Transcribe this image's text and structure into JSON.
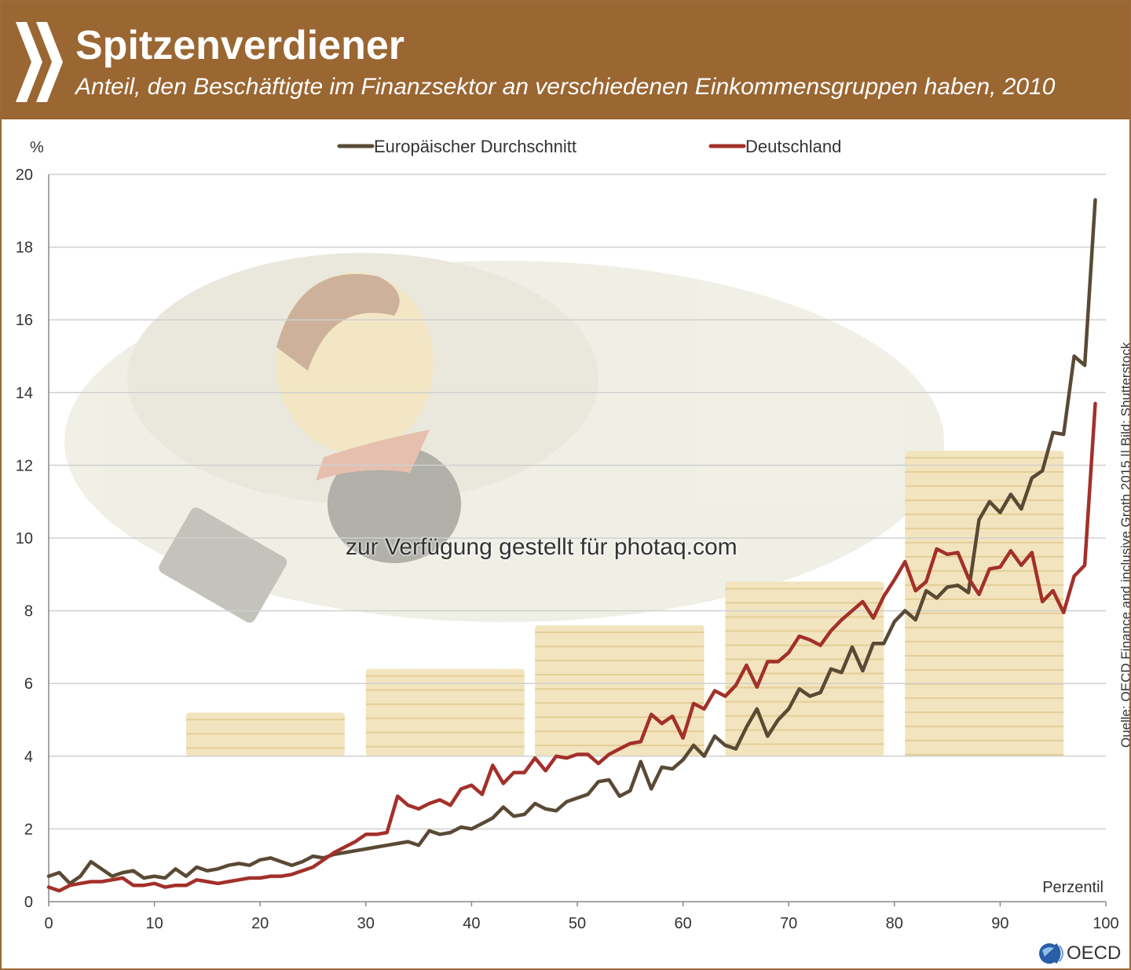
{
  "header": {
    "title": "Spitzenverdiener",
    "subtitle": "Anteil, den Beschäftigte im Finanzsektor an verschiedenen Einkommensgruppen haben, 2010"
  },
  "source_note": "Quelle: OECD Finance and inclusive Groth 2015 || Bild: Shutterstock",
  "watermark": "zur Verfügung gestellt für photaq.com",
  "logo_text": "OECD",
  "colors": {
    "header_bg": "#9a6632",
    "europe": "#5a4a35",
    "germany": "#a3302a",
    "grid": "#d0d0d0"
  },
  "chart_data": {
    "type": "line",
    "title": "Spitzenverdiener",
    "ylabel": "%",
    "xlabel": "Perzentil",
    "xlim": [
      0,
      100
    ],
    "ylim": [
      0,
      20
    ],
    "xticks": [
      0,
      10,
      20,
      30,
      40,
      50,
      60,
      70,
      80,
      90,
      100
    ],
    "yticks": [
      0,
      2,
      4,
      6,
      8,
      10,
      12,
      14,
      16,
      18,
      20
    ],
    "grid": true,
    "legend_position": "top",
    "series": [
      {
        "name": "Europäischer Durchschnitt",
        "color": "#5a4a35",
        "x": [
          0,
          1,
          2,
          3,
          4,
          5,
          6,
          7,
          8,
          9,
          10,
          11,
          12,
          13,
          14,
          15,
          16,
          17,
          18,
          19,
          20,
          21,
          22,
          23,
          24,
          25,
          26,
          27,
          28,
          29,
          30,
          31,
          32,
          33,
          34,
          35,
          36,
          37,
          38,
          39,
          40,
          41,
          42,
          43,
          44,
          45,
          46,
          47,
          48,
          49,
          50,
          51,
          52,
          53,
          54,
          55,
          56,
          57,
          58,
          59,
          60,
          61,
          62,
          63,
          64,
          65,
          66,
          67,
          68,
          69,
          70,
          71,
          72,
          73,
          74,
          75,
          76,
          77,
          78,
          79,
          80,
          81,
          82,
          83,
          84,
          85,
          86,
          87,
          88,
          89,
          90,
          91,
          92,
          93,
          94,
          95,
          96,
          97,
          98,
          99
        ],
        "values": [
          0.7,
          0.8,
          0.5,
          0.7,
          1.1,
          0.9,
          0.7,
          0.8,
          0.85,
          0.65,
          0.7,
          0.65,
          0.9,
          0.7,
          0.95,
          0.85,
          0.9,
          1.0,
          1.05,
          1.0,
          1.15,
          1.2,
          1.1,
          1.0,
          1.1,
          1.25,
          1.2,
          1.3,
          1.35,
          1.4,
          1.45,
          1.5,
          1.55,
          1.6,
          1.65,
          1.55,
          1.95,
          1.85,
          1.9,
          2.05,
          2.0,
          2.15,
          2.3,
          2.6,
          2.35,
          2.4,
          2.7,
          2.55,
          2.5,
          2.75,
          2.85,
          2.95,
          3.3,
          3.35,
          2.9,
          3.05,
          3.85,
          3.1,
          3.7,
          3.65,
          3.9,
          4.3,
          4.0,
          4.55,
          4.3,
          4.2,
          4.8,
          5.3,
          4.55,
          5.0,
          5.3,
          5.85,
          5.65,
          5.75,
          6.4,
          6.3,
          7.0,
          6.35,
          7.1,
          7.1,
          7.7,
          8.0,
          7.75,
          8.55,
          8.35,
          8.65,
          8.7,
          8.5,
          10.5,
          11.0,
          10.7,
          11.2,
          10.8,
          11.65,
          11.85,
          12.9,
          12.85,
          15.0,
          14.75,
          19.3
        ]
      },
      {
        "name": "Deutschland",
        "color": "#a3302a",
        "x": [
          0,
          1,
          2,
          3,
          4,
          5,
          6,
          7,
          8,
          9,
          10,
          11,
          12,
          13,
          14,
          15,
          16,
          17,
          18,
          19,
          20,
          21,
          22,
          23,
          24,
          25,
          26,
          27,
          28,
          29,
          30,
          31,
          32,
          33,
          34,
          35,
          36,
          37,
          38,
          39,
          40,
          41,
          42,
          43,
          44,
          45,
          46,
          47,
          48,
          49,
          50,
          51,
          52,
          53,
          54,
          55,
          56,
          57,
          58,
          59,
          60,
          61,
          62,
          63,
          64,
          65,
          66,
          67,
          68,
          69,
          70,
          71,
          72,
          73,
          74,
          75,
          76,
          77,
          78,
          79,
          80,
          81,
          82,
          83,
          84,
          85,
          86,
          87,
          88,
          89,
          90,
          91,
          92,
          93,
          94,
          95,
          96,
          97,
          98,
          99
        ],
        "values": [
          0.4,
          0.3,
          0.45,
          0.5,
          0.55,
          0.55,
          0.6,
          0.65,
          0.45,
          0.45,
          0.5,
          0.4,
          0.45,
          0.45,
          0.6,
          0.55,
          0.5,
          0.55,
          0.6,
          0.65,
          0.65,
          0.7,
          0.7,
          0.75,
          0.85,
          0.95,
          1.15,
          1.35,
          1.5,
          1.65,
          1.85,
          1.85,
          1.9,
          2.9,
          2.65,
          2.55,
          2.7,
          2.8,
          2.65,
          3.1,
          3.2,
          2.95,
          3.75,
          3.25,
          3.55,
          3.55,
          3.95,
          3.6,
          4.0,
          3.95,
          4.05,
          4.05,
          3.8,
          4.05,
          4.2,
          4.35,
          4.4,
          5.15,
          4.9,
          5.1,
          4.5,
          5.45,
          5.3,
          5.8,
          5.65,
          5.95,
          6.5,
          5.9,
          6.6,
          6.6,
          6.85,
          7.3,
          7.2,
          7.05,
          7.45,
          7.75,
          8.0,
          8.25,
          7.8,
          8.4,
          8.85,
          9.35,
          8.55,
          8.8,
          9.7,
          9.55,
          9.6,
          8.9,
          8.45,
          9.15,
          9.2,
          9.65,
          9.25,
          9.6,
          8.25,
          8.55,
          7.95,
          8.95,
          9.25,
          13.7
        ]
      }
    ]
  }
}
